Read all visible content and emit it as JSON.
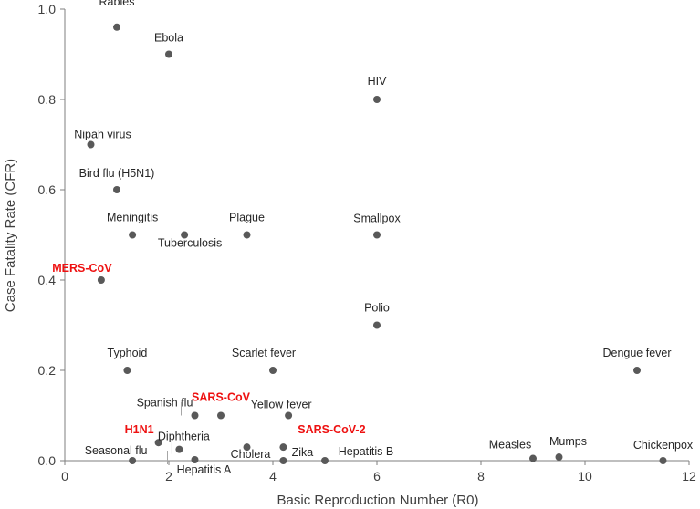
{
  "chart_data": {
    "type": "scatter",
    "title": "",
    "xlabel": "Basic Reproduction Number (R0)",
    "ylabel": "Case Fatality Rate (CFR)",
    "xlim": [
      0,
      12
    ],
    "ylim": [
      0,
      1.0
    ],
    "xticks": [
      "0",
      "2",
      "4",
      "6",
      "8",
      "10",
      "12"
    ],
    "yticks": [
      "0.0",
      "0.2",
      "0.4",
      "0.6",
      "0.8",
      "1.0"
    ],
    "grid": false,
    "legend": "none",
    "colors": {
      "marker": "#595959",
      "highlight": "#ee1111",
      "axis": "#7f7f7f",
      "text": "#262626"
    },
    "points": [
      {
        "label": "Rabies",
        "x": 1.0,
        "y": 0.96,
        "highlight": false
      },
      {
        "label": "Ebola",
        "x": 2.0,
        "y": 0.9,
        "highlight": false
      },
      {
        "label": "HIV",
        "x": 6.0,
        "y": 0.8,
        "highlight": false
      },
      {
        "label": "Nipah virus",
        "x": 0.5,
        "y": 0.7,
        "highlight": false
      },
      {
        "label": "Bird flu (H5N1)",
        "x": 1.0,
        "y": 0.6,
        "highlight": false
      },
      {
        "label": "Meningitis",
        "x": 1.3,
        "y": 0.5,
        "highlight": false
      },
      {
        "label": "Tuberculosis",
        "x": 2.3,
        "y": 0.5,
        "highlight": false
      },
      {
        "label": "Plague",
        "x": 3.5,
        "y": 0.5,
        "highlight": false
      },
      {
        "label": "Smallpox",
        "x": 6.0,
        "y": 0.5,
        "highlight": false
      },
      {
        "label": "MERS-CoV",
        "x": 0.7,
        "y": 0.4,
        "highlight": true
      },
      {
        "label": "Polio",
        "x": 6.0,
        "y": 0.3,
        "highlight": false
      },
      {
        "label": "Typhoid",
        "x": 1.2,
        "y": 0.2,
        "highlight": false
      },
      {
        "label": "Scarlet fever",
        "x": 4.0,
        "y": 0.2,
        "highlight": false
      },
      {
        "label": "Dengue fever",
        "x": 11.0,
        "y": 0.2,
        "highlight": false
      },
      {
        "label": "SARS-CoV",
        "x": 3.0,
        "y": 0.1,
        "highlight": true
      },
      {
        "label": "Spanish flu",
        "x": 2.5,
        "y": 0.1,
        "highlight": false
      },
      {
        "label": "Yellow fever",
        "x": 4.3,
        "y": 0.1,
        "highlight": false
      },
      {
        "label": "H1N1",
        "x": 1.8,
        "y": 0.04,
        "highlight": true
      },
      {
        "label": "Diphtheria",
        "x": 2.2,
        "y": 0.025,
        "highlight": false
      },
      {
        "label": "SARS-CoV-2",
        "x": 4.2,
        "y": 0.03,
        "highlight": true
      },
      {
        "label": "Cholera",
        "x": 3.5,
        "y": 0.03,
        "highlight": false
      },
      {
        "label": "Seasonal flu",
        "x": 1.3,
        "y": 0.0,
        "highlight": false
      },
      {
        "label": "Hepatitis A",
        "x": 2.5,
        "y": 0.002,
        "highlight": false
      },
      {
        "label": "Zika",
        "x": 4.2,
        "y": 0.0,
        "highlight": false
      },
      {
        "label": "Hepatitis B",
        "x": 5.0,
        "y": 0.0,
        "highlight": false
      },
      {
        "label": "Measles",
        "x": 9.0,
        "y": 0.005,
        "highlight": false
      },
      {
        "label": "Mumps",
        "x": 9.5,
        "y": 0.008,
        "highlight": false
      },
      {
        "label": "Chickenpox",
        "x": 11.5,
        "y": 0.0,
        "highlight": false
      }
    ]
  }
}
